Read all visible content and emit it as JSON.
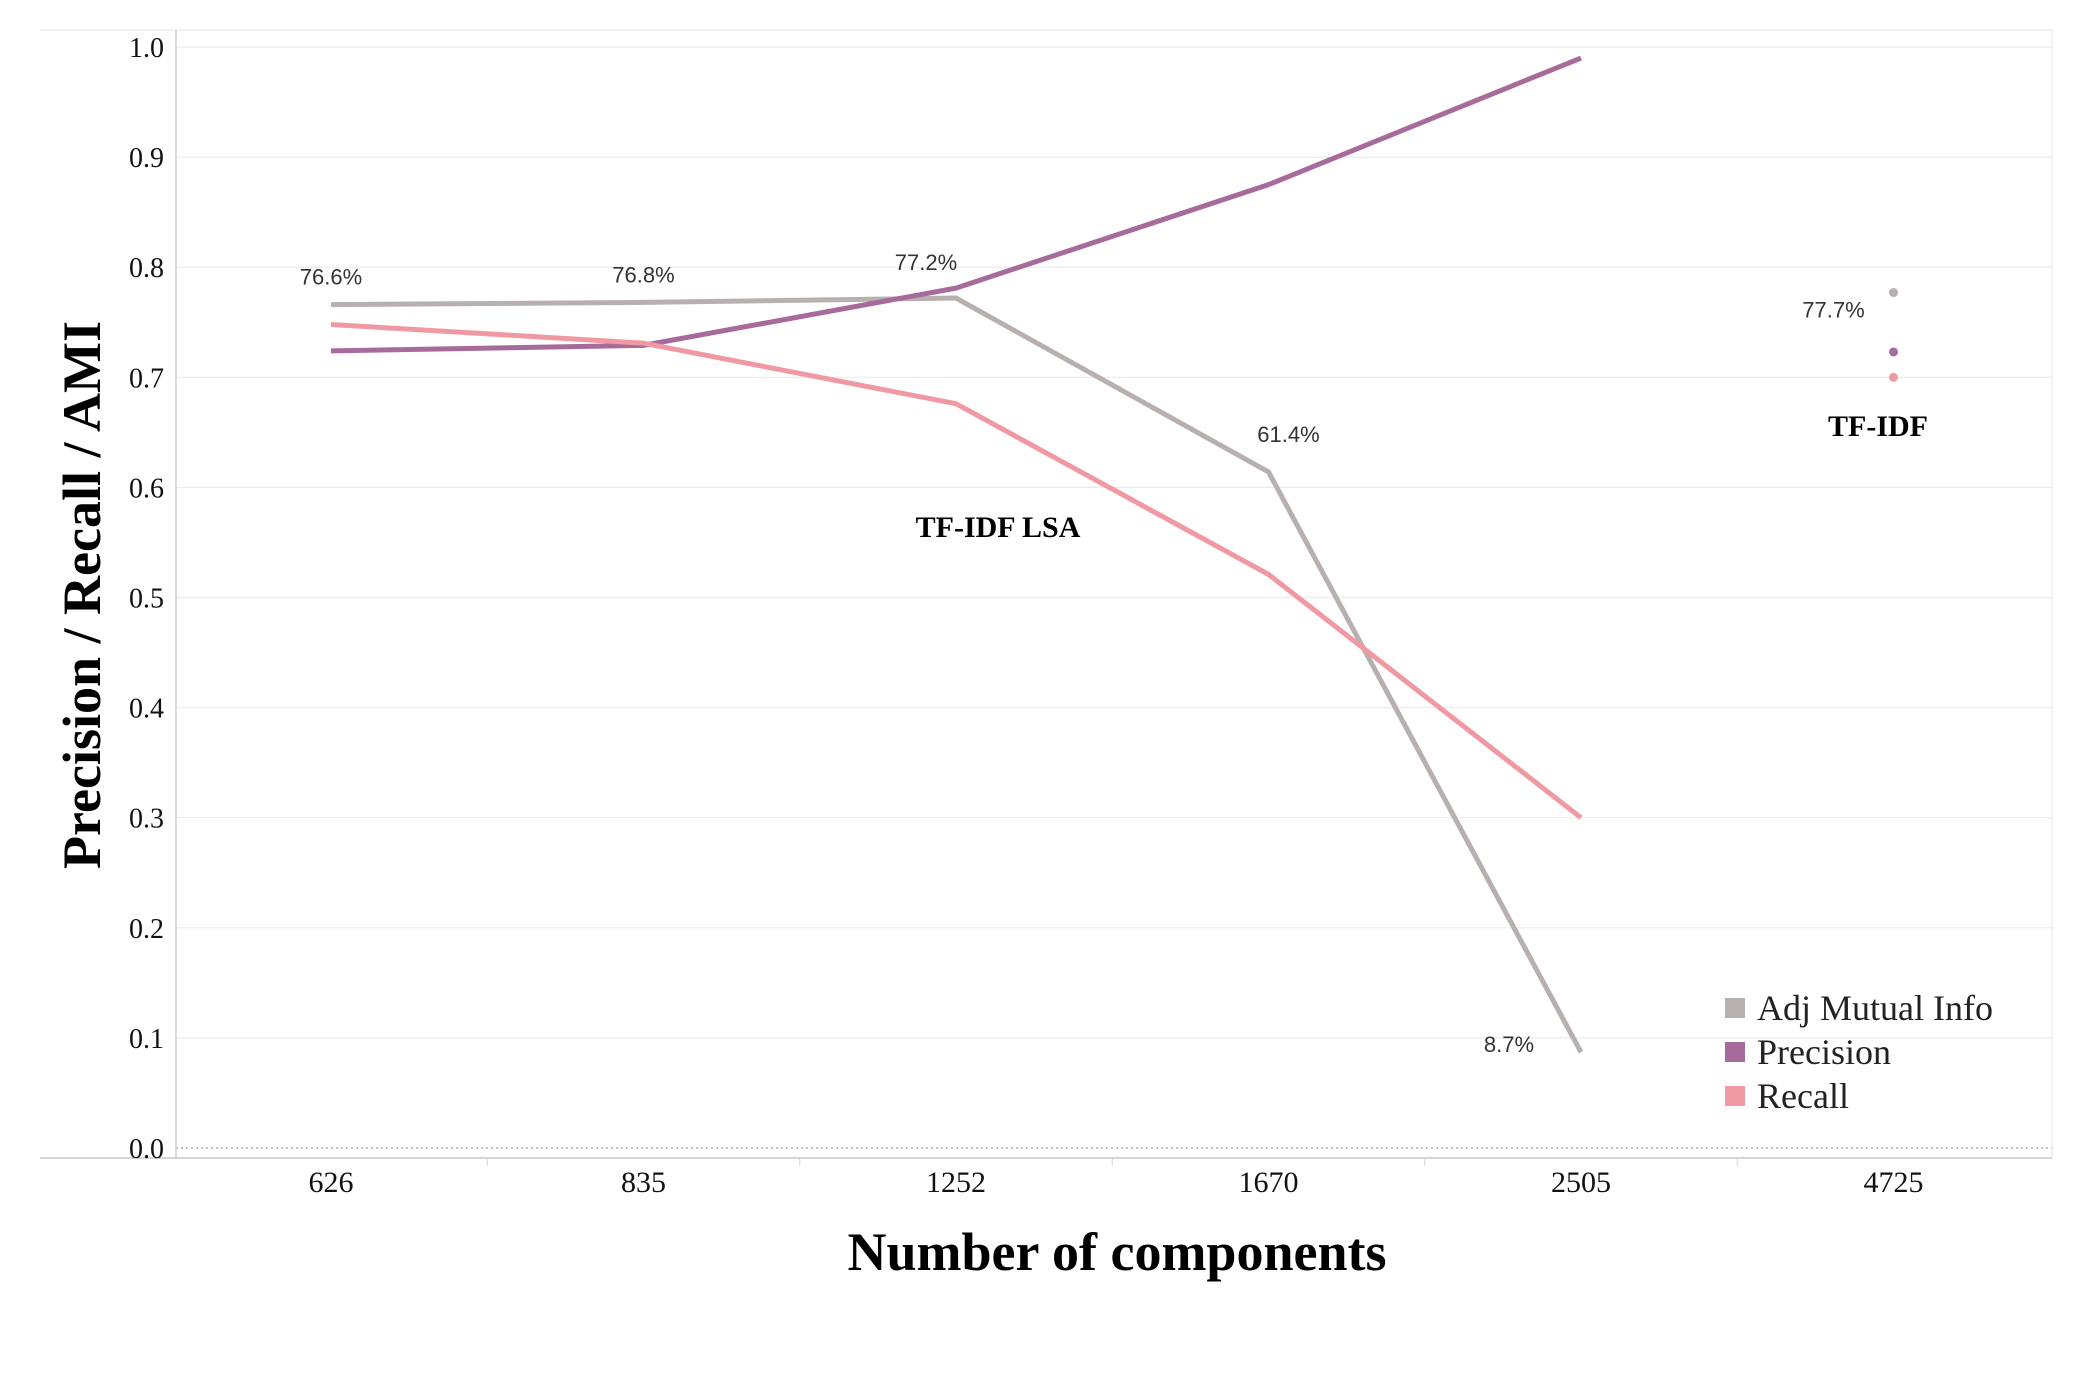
{
  "chart_data": {
    "type": "line",
    "categories": [
      "626",
      "835",
      "1252",
      "1670",
      "2505",
      "4725"
    ],
    "ylabel": "Precision / Recall / AMI",
    "xlabel": "Number of components",
    "ylim": [
      0.0,
      1.0
    ],
    "yticks": [
      "0.0",
      "0.1",
      "0.2",
      "0.3",
      "0.4",
      "0.5",
      "0.6",
      "0.7",
      "0.8",
      "0.9",
      "1.0"
    ],
    "grid": "horizontal",
    "legend_position": "bottom-right",
    "series": [
      {
        "name": "Adj Mutual Info",
        "color": "#b8b0ae",
        "values": [
          0.766,
          0.768,
          0.772,
          0.614,
          0.087,
          0.777
        ],
        "labels": [
          "76.6%",
          "76.8%",
          "77.2%",
          "61.4%",
          "8.7%",
          "77.7%"
        ]
      },
      {
        "name": "Precision",
        "color": "#a76b9b",
        "values": [
          0.724,
          0.729,
          0.781,
          0.875,
          0.99,
          0.723
        ]
      },
      {
        "name": "Recall",
        "color": "#f199a3",
        "values": [
          0.748,
          0.731,
          0.676,
          0.521,
          0.3,
          0.7
        ]
      }
    ],
    "groups": [
      {
        "label": "TF-IDF LSA",
        "from": 0,
        "to": 4
      },
      {
        "label": "TF-IDF",
        "from": 5,
        "to": 5
      }
    ]
  }
}
